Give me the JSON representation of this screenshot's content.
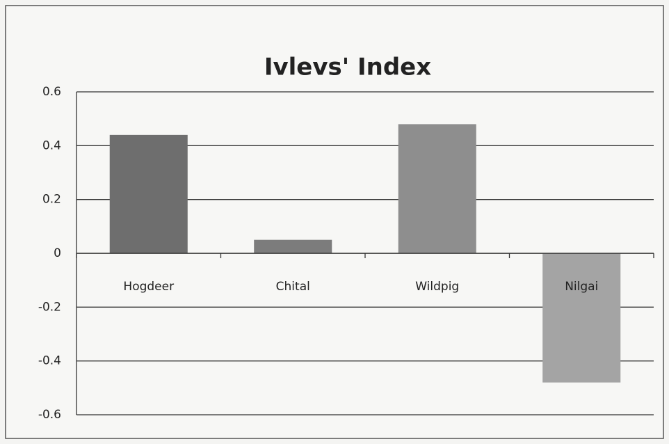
{
  "chart_data": {
    "type": "bar",
    "title": "Ivlevs' Index",
    "categories": [
      "Hogdeer",
      "Chital",
      "Wildpig",
      "Nilgai"
    ],
    "values": [
      0.44,
      0.05,
      0.48,
      -0.48
    ],
    "colors": [
      "#6e6e6e",
      "#7c7c7c",
      "#8e8e8e",
      "#a4a4a4"
    ],
    "ylim": [
      -0.6,
      0.6
    ],
    "yticks": [
      0.6,
      0.4,
      0.2,
      0,
      -0.2,
      -0.4,
      -0.6
    ],
    "grid": true
  }
}
